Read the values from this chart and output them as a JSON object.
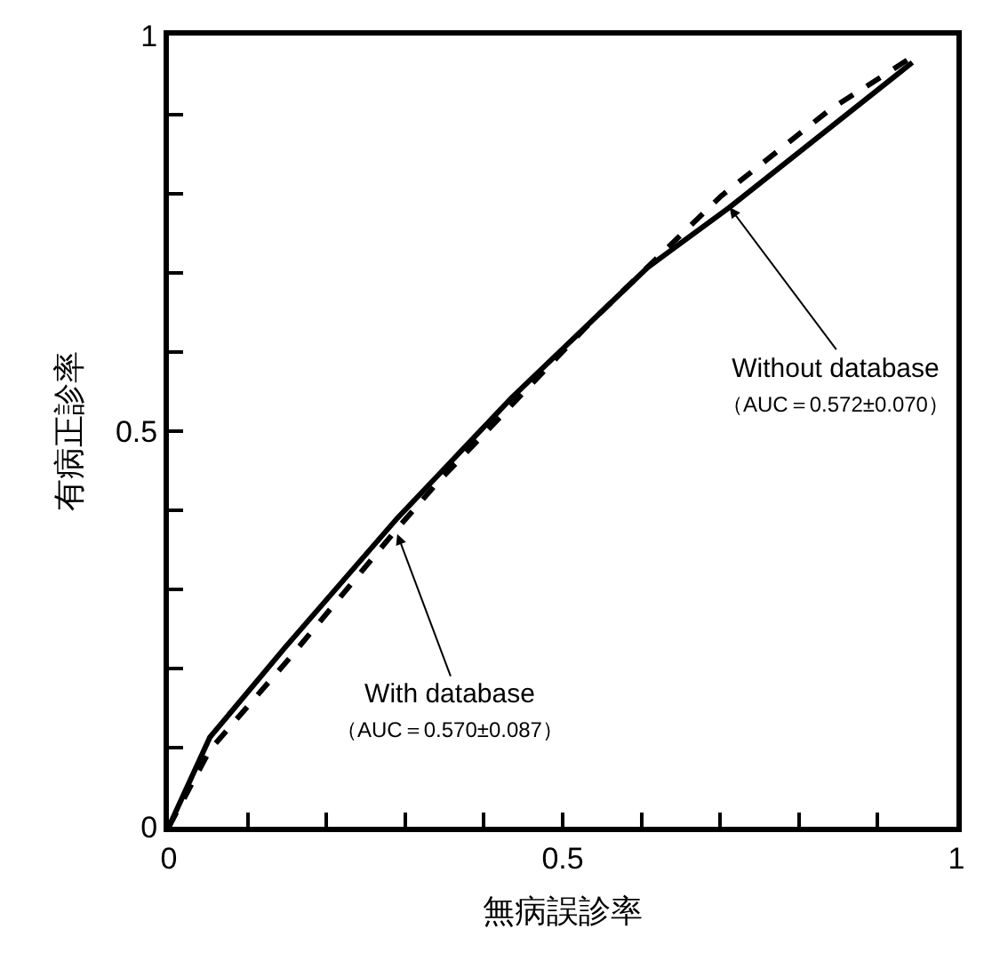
{
  "chart_data": {
    "type": "line",
    "xlabel": "無病誤診率",
    "ylabel": "有病正診率",
    "xlim": [
      0,
      1
    ],
    "ylim": [
      0,
      1
    ],
    "xticks": [
      0,
      {
        "value": 0.1,
        "label": null
      },
      {
        "value": 0.2,
        "label": null
      },
      {
        "value": 0.3,
        "label": null
      },
      {
        "value": 0.4,
        "label": null
      },
      0.5,
      {
        "value": 0.6,
        "label": null
      },
      {
        "value": 0.7,
        "label": null
      },
      {
        "value": 0.8,
        "label": null
      },
      {
        "value": 0.9,
        "label": null
      },
      1
    ],
    "yticks": [
      0,
      {
        "value": 0.1,
        "label": null
      },
      {
        "value": 0.2,
        "label": null
      },
      {
        "value": 0.3,
        "label": null
      },
      {
        "value": 0.4,
        "label": null
      },
      0.5,
      {
        "value": 0.6,
        "label": null
      },
      {
        "value": 0.7,
        "label": null
      },
      {
        "value": 0.8,
        "label": null
      },
      {
        "value": 0.9,
        "label": null
      },
      1
    ],
    "marker": "none",
    "series": [
      {
        "color": "#000000",
        "line_style": "solid",
        "x": [
          0,
          0.052,
          0.147,
          0.29,
          0.435,
          0.608,
          0.712,
          0.944
        ],
        "values": [
          0,
          0.113,
          0.226,
          0.39,
          0.542,
          0.707,
          0.783,
          0.966
        ]
      },
      {
        "color": "#000000",
        "line_style": "dashed",
        "x": [
          0,
          0.052,
          0.154,
          0.29,
          0.342,
          0.537,
          0.701,
          0.84,
          0.905,
          0.939
        ],
        "values": [
          0,
          0.097,
          0.214,
          0.377,
          0.436,
          0.639,
          0.797,
          0.907,
          0.948,
          0.97
        ]
      }
    ],
    "annotations": [
      {
        "text": "Without database\n（AUC＝0.572±0.070）",
        "x": 0.712,
        "y": 0.783
      },
      {
        "text": "With database\n（AUC＝0.570±0.087）",
        "x": 0.29,
        "y": 0.37
      }
    ]
  }
}
